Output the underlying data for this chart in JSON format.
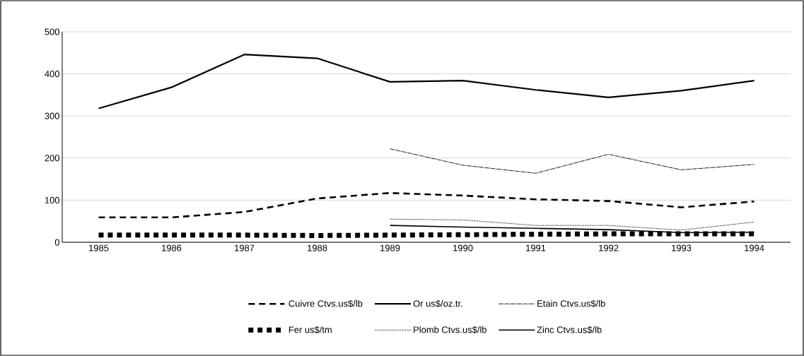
{
  "chart_data": {
    "type": "line",
    "categories": [
      "1985",
      "1986",
      "1987",
      "1988",
      "1989",
      "1990",
      "1991",
      "1992",
      "1993",
      "1994"
    ],
    "ylim": [
      0,
      500
    ],
    "yticks": [
      0,
      100,
      200,
      300,
      400,
      500
    ],
    "grid": "y",
    "legend": "bottom",
    "series": [
      {
        "name": "Cuivre Ctvs.us$/lb",
        "color": "#000000",
        "line_style": "dashed",
        "values": [
          59,
          59,
          72,
          104,
          117,
          111,
          102,
          98,
          83,
          97
        ]
      },
      {
        "name": "Or us$/oz.tr.",
        "color": "#000000",
        "line_style": "solid",
        "values": [
          318,
          368,
          446,
          437,
          381,
          384,
          362,
          344,
          360,
          384
        ]
      },
      {
        "name": "Etain Ctvs.us$/lb",
        "color": "#000000",
        "line_style": "dotted",
        "values": [
          null,
          null,
          null,
          null,
          222,
          183,
          164,
          209,
          172,
          185
        ]
      },
      {
        "name": "Fer us$/tm",
        "color": "#000000",
        "line_style": "dotted",
        "values": [
          17,
          17,
          17,
          16,
          17,
          18,
          19,
          20,
          20,
          20
        ]
      },
      {
        "name": "Plomb Ctvs.us$/lb",
        "color": "#000000",
        "line_style": "dashed",
        "values": [
          null,
          null,
          null,
          null,
          55,
          53,
          40,
          40,
          29,
          48
        ]
      },
      {
        "name": "Zinc Ctvs.us$/lb",
        "color": "#000000",
        "line_style": "solid",
        "values": [
          null,
          null,
          null,
          null,
          40,
          36,
          33,
          30,
          23,
          24
        ]
      }
    ]
  }
}
